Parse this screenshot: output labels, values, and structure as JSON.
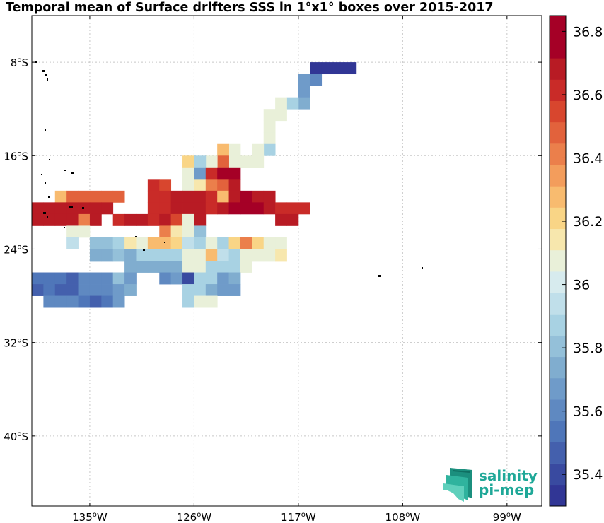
{
  "title": "Temporal mean of Surface drifters SSS in 1°x1° boxes over 2015-2017",
  "chart_data": {
    "type": "heatmap",
    "title": "Temporal mean of Surface drifters SSS in 1°x1° boxes over 2015-2017",
    "x_axis": {
      "range_lon": [
        -140,
        -96
      ],
      "ticks": [
        {
          "lon": -135,
          "label": "135°W"
        },
        {
          "lon": -126,
          "label": "126°W"
        },
        {
          "lon": -117,
          "label": "117°W"
        },
        {
          "lon": -108,
          "label": "108°W"
        },
        {
          "lon": -99,
          "label": "99°W"
        }
      ]
    },
    "y_axis": {
      "range_lat": [
        -46,
        -4
      ],
      "ticks": [
        {
          "lat": -8,
          "label": "8°S"
        },
        {
          "lat": -16,
          "label": "16°S"
        },
        {
          "lat": -24,
          "label": "24°S"
        },
        {
          "lat": -32,
          "label": "32°S"
        },
        {
          "lat": -40,
          "label": "40°S"
        }
      ]
    },
    "grid": true,
    "colorbar": {
      "min": 35.3,
      "max": 36.85,
      "steps": 23,
      "labels": [
        "35.4",
        "35.6",
        "35.8",
        "36",
        "36.2",
        "36.4",
        "36.6",
        "36.8"
      ],
      "colors": [
        "#313695",
        "#394aa0",
        "#4460ad",
        "#4f76b9",
        "#5f89c1",
        "#6f9bc9",
        "#80adcf",
        "#94c0d9",
        "#a8d2e3",
        "#c0dfea",
        "#d7ebee",
        "#e9f0d9",
        "#f7e7ad",
        "#f9d586",
        "#f8bb6f",
        "#f39d5c",
        "#eb7f4b",
        "#e2623c",
        "#d8462e",
        "#c92b28",
        "#b81b24",
        "#a50026",
        "#a50026"
      ],
      "position": "right"
    },
    "cells": [
      {
        "lon": -115.5,
        "lat": -8.5,
        "value": 35.35
      },
      {
        "lon": -114.5,
        "lat": -8.5,
        "value": 35.35
      },
      {
        "lon": -113.5,
        "lat": -8.5,
        "value": 35.35
      },
      {
        "lon": -112.5,
        "lat": -8.5,
        "value": 35.35
      },
      {
        "lon": -115.5,
        "lat": -9.5,
        "value": 35.6
      },
      {
        "lon": -116.5,
        "lat": -9.5,
        "value": 35.65
      },
      {
        "lon": -116.5,
        "lat": -10.5,
        "value": 35.65
      },
      {
        "lon": -116.5,
        "lat": -11.5,
        "value": 35.75
      },
      {
        "lon": -117.5,
        "lat": -11.5,
        "value": 35.85
      },
      {
        "lon": -118.5,
        "lat": -11.5,
        "value": 36.05
      },
      {
        "lon": -118.5,
        "lat": -12.5,
        "value": 36.05
      },
      {
        "lon": -119.5,
        "lat": -12.5,
        "value": 36.05
      },
      {
        "lon": -119.5,
        "lat": -13.5,
        "value": 36.05
      },
      {
        "lon": -119.5,
        "lat": -14.5,
        "value": 36.1
      },
      {
        "lon": -119.5,
        "lat": -15.5,
        "value": 35.9
      },
      {
        "lon": -120.5,
        "lat": -15.5,
        "value": 36.1
      },
      {
        "lon": -122.5,
        "lat": -15.5,
        "value": 36.1
      },
      {
        "lon": -123.5,
        "lat": -15.5,
        "value": 36.25
      },
      {
        "lon": -120.5,
        "lat": -16.5,
        "value": 36.1
      },
      {
        "lon": -121.5,
        "lat": -16.5,
        "value": 36.05
      },
      {
        "lon": -122.5,
        "lat": -16.5,
        "value": 36.1
      },
      {
        "lon": -123.5,
        "lat": -16.5,
        "value": 36.5
      },
      {
        "lon": -124.5,
        "lat": -16.5,
        "value": 36.1
      },
      {
        "lon": -125.5,
        "lat": -16.5,
        "value": 35.9
      },
      {
        "lon": -126.5,
        "lat": -16.5,
        "value": 36.2
      },
      {
        "lon": -126.5,
        "lat": -17.5,
        "value": 36.05
      },
      {
        "lon": -125.5,
        "lat": -17.5,
        "value": 35.7
      },
      {
        "lon": -124.5,
        "lat": -17.5,
        "value": 36.6
      },
      {
        "lon": -123.5,
        "lat": -17.5,
        "value": 36.8
      },
      {
        "lon": -122.5,
        "lat": -17.5,
        "value": 36.8
      },
      {
        "lon": -129.5,
        "lat": -18.5,
        "value": 36.6
      },
      {
        "lon": -128.5,
        "lat": -18.5,
        "value": 36.55
      },
      {
        "lon": -126.5,
        "lat": -18.5,
        "value": 36.05
      },
      {
        "lon": -125.5,
        "lat": -18.5,
        "value": 36.15
      },
      {
        "lon": -124.5,
        "lat": -18.5,
        "value": 36.4
      },
      {
        "lon": -123.5,
        "lat": -18.5,
        "value": 36.5
      },
      {
        "lon": -122.5,
        "lat": -18.5,
        "value": 36.65
      },
      {
        "lon": -137.5,
        "lat": -19.5,
        "value": 36.25
      },
      {
        "lon": -136.5,
        "lat": -19.5,
        "value": 36.45
      },
      {
        "lon": -135.5,
        "lat": -19.5,
        "value": 36.45
      },
      {
        "lon": -134.5,
        "lat": -19.5,
        "value": 36.45
      },
      {
        "lon": -133.5,
        "lat": -19.5,
        "value": 36.45
      },
      {
        "lon": -132.5,
        "lat": -19.5,
        "value": 36.45
      },
      {
        "lon": -129.5,
        "lat": -19.5,
        "value": 36.6
      },
      {
        "lon": -128.5,
        "lat": -19.5,
        "value": 36.6
      },
      {
        "lon": -127.5,
        "lat": -19.5,
        "value": 36.7
      },
      {
        "lon": -126.5,
        "lat": -19.5,
        "value": 36.65
      },
      {
        "lon": -125.5,
        "lat": -19.5,
        "value": 36.65
      },
      {
        "lon": -124.5,
        "lat": -19.5,
        "value": 36.6
      },
      {
        "lon": -123.5,
        "lat": -19.5,
        "value": 36.3
      },
      {
        "lon": -122.5,
        "lat": -19.5,
        "value": 36.7
      },
      {
        "lon": -121.5,
        "lat": -19.5,
        "value": 36.8
      },
      {
        "lon": -120.5,
        "lat": -19.5,
        "value": 36.65
      },
      {
        "lon": -119.5,
        "lat": -19.5,
        "value": 36.65
      },
      {
        "lon": -139.5,
        "lat": -20.5,
        "value": 36.65
      },
      {
        "lon": -138.5,
        "lat": -20.5,
        "value": 36.7
      },
      {
        "lon": -137.5,
        "lat": -20.5,
        "value": 36.7
      },
      {
        "lon": -136.5,
        "lat": -20.5,
        "value": 36.7
      },
      {
        "lon": -135.5,
        "lat": -20.5,
        "value": 36.7
      },
      {
        "lon": -134.5,
        "lat": -20.5,
        "value": 36.7
      },
      {
        "lon": -133.5,
        "lat": -20.5,
        "value": 36.7
      },
      {
        "lon": -129.5,
        "lat": -20.5,
        "value": 36.6
      },
      {
        "lon": -128.5,
        "lat": -20.5,
        "value": 36.6
      },
      {
        "lon": -127.5,
        "lat": -20.5,
        "value": 36.65
      },
      {
        "lon": -126.5,
        "lat": -20.5,
        "value": 36.65
      },
      {
        "lon": -125.5,
        "lat": -20.5,
        "value": 36.65
      },
      {
        "lon": -124.5,
        "lat": -20.5,
        "value": 36.6
      },
      {
        "lon": -123.5,
        "lat": -20.5,
        "value": 36.7
      },
      {
        "lon": -122.5,
        "lat": -20.5,
        "value": 36.8
      },
      {
        "lon": -121.5,
        "lat": -20.5,
        "value": 36.8
      },
      {
        "lon": -120.5,
        "lat": -20.5,
        "value": 36.8
      },
      {
        "lon": -119.5,
        "lat": -20.5,
        "value": 36.65
      },
      {
        "lon": -118.5,
        "lat": -20.5,
        "value": 36.6
      },
      {
        "lon": -117.5,
        "lat": -20.5,
        "value": 36.6
      },
      {
        "lon": -116.5,
        "lat": -20.5,
        "value": 36.6
      },
      {
        "lon": -139.5,
        "lat": -21.5,
        "value": 36.65
      },
      {
        "lon": -138.5,
        "lat": -21.5,
        "value": 36.65
      },
      {
        "lon": -137.5,
        "lat": -21.5,
        "value": 36.65
      },
      {
        "lon": -136.5,
        "lat": -21.5,
        "value": 36.65
      },
      {
        "lon": -135.5,
        "lat": -21.5,
        "value": 36.4
      },
      {
        "lon": -134.5,
        "lat": -21.5,
        "value": 36.65
      },
      {
        "lon": -132.5,
        "lat": -21.5,
        "value": 36.6
      },
      {
        "lon": -131.5,
        "lat": -21.5,
        "value": 36.65
      },
      {
        "lon": -130.5,
        "lat": -21.5,
        "value": 36.7
      },
      {
        "lon": -129.5,
        "lat": -21.5,
        "value": 36.6
      },
      {
        "lon": -128.5,
        "lat": -21.5,
        "value": 36.7
      },
      {
        "lon": -127.5,
        "lat": -21.5,
        "value": 36.55
      },
      {
        "lon": -126.5,
        "lat": -21.5,
        "value": 36.05
      },
      {
        "lon": -125.5,
        "lat": -21.5,
        "value": 36.65
      },
      {
        "lon": -118.5,
        "lat": -21.5,
        "value": 36.65
      },
      {
        "lon": -117.5,
        "lat": -21.5,
        "value": 36.65
      },
      {
        "lon": -136.5,
        "lat": -22.5,
        "value": 36.05
      },
      {
        "lon": -135.5,
        "lat": -22.5,
        "value": 36.1
      },
      {
        "lon": -128.5,
        "lat": -22.5,
        "value": 36.4
      },
      {
        "lon": -127.5,
        "lat": -22.5,
        "value": 36.15
      },
      {
        "lon": -126.5,
        "lat": -22.5,
        "value": 36.05
      },
      {
        "lon": -125.5,
        "lat": -22.5,
        "value": 35.8
      },
      {
        "lon": -136.5,
        "lat": -23.5,
        "value": 35.95
      },
      {
        "lon": -134.5,
        "lat": -23.5,
        "value": 35.8
      },
      {
        "lon": -133.5,
        "lat": -23.5,
        "value": 35.8
      },
      {
        "lon": -132.5,
        "lat": -23.5,
        "value": 35.9
      },
      {
        "lon": -131.5,
        "lat": -23.5,
        "value": 36.15
      },
      {
        "lon": -130.5,
        "lat": -23.5,
        "value": 36.05
      },
      {
        "lon": -129.5,
        "lat": -23.5,
        "value": 36.25
      },
      {
        "lon": -128.5,
        "lat": -23.5,
        "value": 36.25
      },
      {
        "lon": -127.5,
        "lat": -23.5,
        "value": 36.2
      },
      {
        "lon": -126.5,
        "lat": -23.5,
        "value": 35.95
      },
      {
        "lon": -125.5,
        "lat": -23.5,
        "value": 35.85
      },
      {
        "lon": -124.5,
        "lat": -23.5,
        "value": 36.05
      },
      {
        "lon": -123.5,
        "lat": -23.5,
        "value": 35.9
      },
      {
        "lon": -122.5,
        "lat": -23.5,
        "value": 36.2
      },
      {
        "lon": -121.5,
        "lat": -23.5,
        "value": 36.4
      },
      {
        "lon": -120.5,
        "lat": -23.5,
        "value": 36.2
      },
      {
        "lon": -119.5,
        "lat": -23.5,
        "value": 36.1
      },
      {
        "lon": -118.5,
        "lat": -23.5,
        "value": 36.1
      },
      {
        "lon": -134.5,
        "lat": -24.5,
        "value": 35.75
      },
      {
        "lon": -133.5,
        "lat": -24.5,
        "value": 35.75
      },
      {
        "lon": -132.5,
        "lat": -24.5,
        "value": 35.8
      },
      {
        "lon": -131.5,
        "lat": -24.5,
        "value": 35.75
      },
      {
        "lon": -130.5,
        "lat": -24.5,
        "value": 35.9
      },
      {
        "lon": -129.5,
        "lat": -24.5,
        "value": 35.9
      },
      {
        "lon": -128.5,
        "lat": -24.5,
        "value": 35.9
      },
      {
        "lon": -127.5,
        "lat": -24.5,
        "value": 35.9
      },
      {
        "lon": -126.5,
        "lat": -24.5,
        "value": 36.05
      },
      {
        "lon": -125.5,
        "lat": -24.5,
        "value": 36.05
      },
      {
        "lon": -124.5,
        "lat": -24.5,
        "value": 36.3
      },
      {
        "lon": -123.5,
        "lat": -24.5,
        "value": 35.95
      },
      {
        "lon": -122.5,
        "lat": -24.5,
        "value": 35.9
      },
      {
        "lon": -121.5,
        "lat": -24.5,
        "value": 36.05
      },
      {
        "lon": -120.5,
        "lat": -24.5,
        "value": 36.1
      },
      {
        "lon": -119.5,
        "lat": -24.5,
        "value": 36.1
      },
      {
        "lon": -118.5,
        "lat": -24.5,
        "value": 36.15
      },
      {
        "lon": -131.5,
        "lat": -25.5,
        "value": 35.75
      },
      {
        "lon": -130.5,
        "lat": -25.5,
        "value": 35.75
      },
      {
        "lon": -129.5,
        "lat": -25.5,
        "value": 35.75
      },
      {
        "lon": -128.5,
        "lat": -25.5,
        "value": 35.75
      },
      {
        "lon": -127.5,
        "lat": -25.5,
        "value": 35.75
      },
      {
        "lon": -126.5,
        "lat": -25.5,
        "value": 36.05
      },
      {
        "lon": -125.5,
        "lat": -25.5,
        "value": 36.05
      },
      {
        "lon": -124.5,
        "lat": -25.5,
        "value": 35.9
      },
      {
        "lon": -123.5,
        "lat": -25.5,
        "value": 35.9
      },
      {
        "lon": -122.5,
        "lat": -25.5,
        "value": 35.9
      },
      {
        "lon": -121.5,
        "lat": -25.5,
        "value": 36.05
      },
      {
        "lon": -139.5,
        "lat": -26.5,
        "value": 35.55
      },
      {
        "lon": -138.5,
        "lat": -26.5,
        "value": 35.55
      },
      {
        "lon": -137.5,
        "lat": -26.5,
        "value": 35.55
      },
      {
        "lon": -136.5,
        "lat": -26.5,
        "value": 35.45
      },
      {
        "lon": -135.5,
        "lat": -26.5,
        "value": 35.6
      },
      {
        "lon": -134.5,
        "lat": -26.5,
        "value": 35.6
      },
      {
        "lon": -133.5,
        "lat": -26.5,
        "value": 35.6
      },
      {
        "lon": -132.5,
        "lat": -26.5,
        "value": 35.8
      },
      {
        "lon": -131.5,
        "lat": -26.5,
        "value": 35.65
      },
      {
        "lon": -128.5,
        "lat": -26.5,
        "value": 35.6
      },
      {
        "lon": -127.5,
        "lat": -26.5,
        "value": 35.65
      },
      {
        "lon": -126.5,
        "lat": -26.5,
        "value": 35.4
      },
      {
        "lon": -125.5,
        "lat": -26.5,
        "value": 35.85
      },
      {
        "lon": -124.5,
        "lat": -26.5,
        "value": 35.85
      },
      {
        "lon": -123.5,
        "lat": -26.5,
        "value": 35.65
      },
      {
        "lon": -122.5,
        "lat": -26.5,
        "value": 35.75
      },
      {
        "lon": -139.5,
        "lat": -27.5,
        "value": 35.45
      },
      {
        "lon": -138.5,
        "lat": -27.5,
        "value": 35.55
      },
      {
        "lon": -137.5,
        "lat": -27.5,
        "value": 35.45
      },
      {
        "lon": -136.5,
        "lat": -27.5,
        "value": 35.45
      },
      {
        "lon": -135.5,
        "lat": -27.5,
        "value": 35.6
      },
      {
        "lon": -134.5,
        "lat": -27.5,
        "value": 35.6
      },
      {
        "lon": -133.5,
        "lat": -27.5,
        "value": 35.6
      },
      {
        "lon": -132.5,
        "lat": -27.5,
        "value": 35.65
      },
      {
        "lon": -131.5,
        "lat": -27.5,
        "value": 35.75
      },
      {
        "lon": -126.5,
        "lat": -27.5,
        "value": 35.9
      },
      {
        "lon": -125.5,
        "lat": -27.5,
        "value": 35.9
      },
      {
        "lon": -124.5,
        "lat": -27.5,
        "value": 35.75
      },
      {
        "lon": -123.5,
        "lat": -27.5,
        "value": 35.65
      },
      {
        "lon": -122.5,
        "lat": -27.5,
        "value": 35.65
      },
      {
        "lon": -138.5,
        "lat": -28.5,
        "value": 35.6
      },
      {
        "lon": -137.5,
        "lat": -28.5,
        "value": 35.6
      },
      {
        "lon": -136.5,
        "lat": -28.5,
        "value": 35.6
      },
      {
        "lon": -135.5,
        "lat": -28.5,
        "value": 35.55
      },
      {
        "lon": -134.5,
        "lat": -28.5,
        "value": 35.45
      },
      {
        "lon": -133.5,
        "lat": -28.5,
        "value": 35.55
      },
      {
        "lon": -132.5,
        "lat": -28.5,
        "value": 35.65
      },
      {
        "lon": -126.5,
        "lat": -28.5,
        "value": 35.9
      },
      {
        "lon": -125.5,
        "lat": -28.5,
        "value": 36.05
      },
      {
        "lon": -124.5,
        "lat": -28.5,
        "value": 36.05
      }
    ]
  },
  "logo": {
    "line1": "salinity",
    "line2": "pi-mep",
    "color": "#1fa898"
  }
}
